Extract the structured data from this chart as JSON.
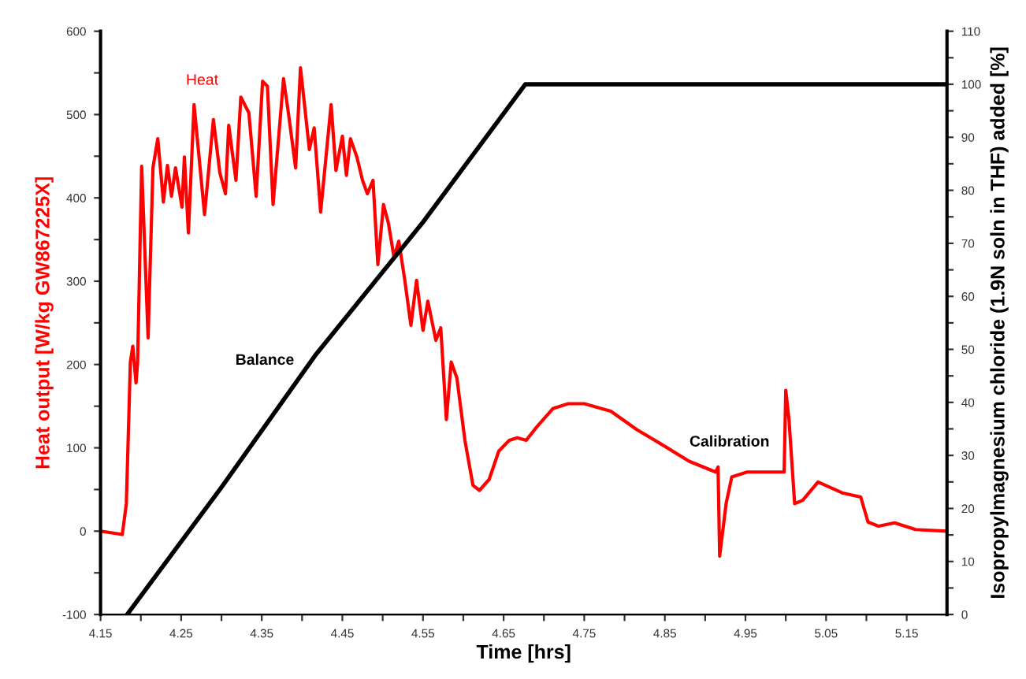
{
  "chart_data": {
    "type": "line",
    "xlabel": "Time [hrs]",
    "ylabel": "Heat output [W/kg GW867225X]",
    "y2label": "Isopropylmagnesium chloride (1.9N soln in THF) added [%]",
    "xlim": [
      4.15,
      5.2
    ],
    "xticks": [
      4.15,
      {
        "value": 4.2,
        "label": null
      },
      4.25,
      {
        "value": 4.3,
        "label": null
      },
      4.35,
      {
        "value": 4.4,
        "label": null
      },
      4.45,
      {
        "value": 4.5,
        "label": null
      },
      4.55,
      {
        "value": 4.6,
        "label": null
      },
      4.65,
      {
        "value": 4.7,
        "label": null
      },
      4.75,
      {
        "value": 4.8,
        "label": null
      },
      4.85,
      {
        "value": 4.9,
        "label": null
      },
      4.95,
      {
        "value": 5.0,
        "label": null
      },
      5.05,
      {
        "value": 5.1,
        "label": null
      },
      5.15
    ],
    "ylim": [
      -100,
      600
    ],
    "yticks": [
      -100,
      {
        "value": -50,
        "label": null
      },
      0,
      {
        "value": 50,
        "label": null
      },
      100,
      {
        "value": 150,
        "label": null
      },
      200,
      {
        "value": 250,
        "label": null
      },
      300,
      {
        "value": 350,
        "label": null
      },
      400,
      {
        "value": 450,
        "label": null
      },
      500,
      {
        "value": 550,
        "label": null
      },
      600
    ],
    "y2lim": [
      0,
      110
    ],
    "y2ticks": [
      0,
      {
        "value": 5,
        "label": null
      },
      10,
      {
        "value": 15,
        "label": null
      },
      20,
      {
        "value": 25,
        "label": null
      },
      30,
      {
        "value": 35,
        "label": null
      },
      40,
      {
        "value": 45,
        "label": null
      },
      50,
      {
        "value": 55,
        "label": null
      },
      60,
      {
        "value": 65,
        "label": null
      },
      70,
      {
        "value": 75,
        "label": null
      },
      80,
      {
        "value": 85,
        "label": null
      },
      90,
      {
        "value": 95,
        "label": null
      },
      100,
      {
        "value": 105,
        "label": null
      },
      110
    ],
    "grid": false,
    "legend": false,
    "marker": "none",
    "line_style": "solid",
    "series": [
      {
        "name": "Heat",
        "color": "#ff0000",
        "x": [
          4.15,
          4.177,
          4.182,
          4.187,
          4.19,
          4.194,
          4.196,
          4.201,
          4.209,
          4.215,
          4.221,
          4.228,
          4.233,
          4.238,
          4.243,
          4.251,
          4.254,
          4.259,
          4.266,
          4.279,
          4.29,
          4.298,
          4.305,
          4.309,
          4.318,
          4.324,
          4.334,
          4.343,
          4.351,
          4.357,
          4.364,
          4.377,
          4.383,
          4.392,
          4.398,
          4.403,
          4.409,
          4.415,
          4.423,
          4.436,
          4.442,
          4.45,
          4.455,
          4.46,
          4.468,
          4.475,
          4.481,
          4.488,
          4.494,
          4.501,
          4.507,
          4.514,
          4.52,
          4.527,
          4.535,
          4.542,
          4.55,
          4.556,
          4.566,
          4.572,
          4.579,
          4.585,
          4.592,
          4.602,
          4.612,
          4.62,
          4.632,
          4.644,
          4.657,
          4.667,
          4.678,
          4.691,
          4.711,
          4.73,
          4.75,
          4.783,
          4.815,
          4.848,
          4.88,
          4.913,
          4.916,
          4.918,
          4.926,
          4.933,
          4.952,
          4.978,
          4.998,
          5.0,
          5.004,
          5.011,
          5.021,
          5.04,
          5.07,
          5.093,
          5.102,
          5.115,
          5.135,
          5.161,
          5.2
        ],
        "values": [
          0,
          -4,
          33,
          203,
          222,
          178,
          203,
          438,
          232,
          436,
          471,
          395,
          439,
          402,
          436,
          389,
          449,
          358,
          512,
          380,
          494,
          430,
          405,
          487,
          421,
          521,
          502,
          402,
          540,
          534,
          392,
          543,
          502,
          436,
          556,
          512,
          458,
          484,
          383,
          512,
          433,
          474,
          427,
          471,
          449,
          421,
          405,
          421,
          320,
          392,
          370,
          329,
          348,
          304,
          247,
          301,
          241,
          276,
          229,
          244,
          134,
          203,
          184,
          109,
          55,
          49,
          62,
          96,
          109,
          112,
          109,
          125,
          147,
          153,
          153,
          144,
          122,
          103,
          84,
          71,
          77,
          -30,
          33,
          65,
          71,
          71,
          71,
          169,
          134,
          33,
          37,
          59,
          46,
          41,
          11,
          6,
          10,
          2,
          0
        ]
      },
      {
        "name": "Balance",
        "color": "#000000",
        "axis": "y2",
        "x": [
          4.183,
          4.3,
          4.416,
          4.55,
          4.677,
          5.2
        ],
        "values": [
          0,
          24,
          48.8,
          74,
          100,
          100
        ]
      }
    ],
    "annotations": [
      "Calibration"
    ]
  }
}
